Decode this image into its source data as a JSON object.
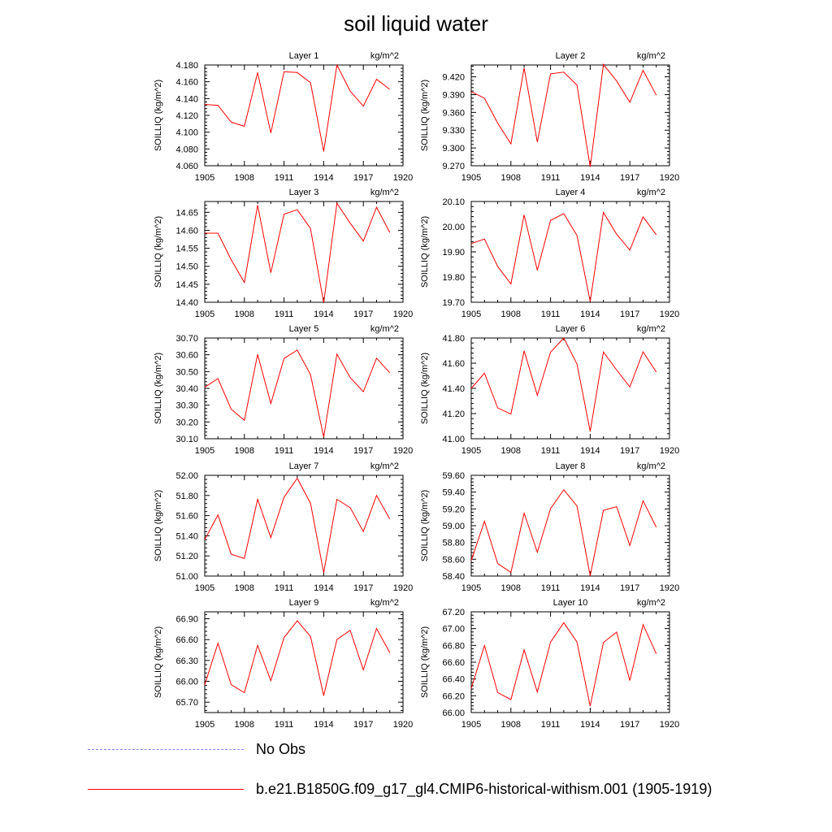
{
  "title": "soil liquid water",
  "chart_data": {
    "type": "line",
    "xlabel": "",
    "ylabel": "SOILLIQ  (kg/m^2)",
    "units": "kg/m^2",
    "xlim": [
      1905,
      1920
    ],
    "x_ticks": [
      1905,
      1908,
      1911,
      1914,
      1917,
      1920
    ],
    "x": [
      1905,
      1906,
      1907,
      1908,
      1909,
      1910,
      1911,
      1912,
      1913,
      1914,
      1915,
      1916,
      1917,
      1918,
      1919
    ],
    "panels": [
      {
        "label": "Layer 1",
        "ylim": [
          4.06,
          4.18
        ],
        "y_ticks": [
          "4.060",
          "4.080",
          "4.100",
          "4.120",
          "4.140",
          "4.160",
          "4.180"
        ],
        "series": [
          {
            "name": "b.e21.B1850G.f09_g17_gl4.CMIP6-historical-withism.001 (1905-1919)",
            "color": "#ff0000",
            "values": [
              4.133,
              4.132,
              4.112,
              4.107,
              4.171,
              4.099,
              4.172,
              4.171,
              4.159,
              4.077,
              4.18,
              4.149,
              4.131,
              4.163,
              4.151
            ]
          }
        ]
      },
      {
        "label": "Layer 2",
        "ylim": [
          9.27,
          9.44
        ],
        "y_ticks": [
          "9.270",
          "9.300",
          "9.330",
          "9.360",
          "9.390",
          "9.420"
        ],
        "series": [
          {
            "name": "b.e21.B1850G.f09_g17_gl4.CMIP6-historical-withism.001 (1905-1919)",
            "color": "#ff0000",
            "values": [
              9.395,
              9.384,
              9.342,
              9.307,
              9.435,
              9.31,
              9.425,
              9.428,
              9.406,
              9.268,
              9.441,
              9.413,
              9.377,
              9.431,
              9.389
            ]
          }
        ]
      },
      {
        "label": "Layer 3",
        "ylim": [
          14.4,
          14.68
        ],
        "y_ticks": [
          "14.40",
          "14.45",
          "14.50",
          "14.55",
          "14.60",
          "14.65"
        ],
        "series": [
          {
            "name": "b.e21.B1850G.f09_g17_gl4.CMIP6-historical-withism.001 (1905-1919)",
            "color": "#ff0000",
            "values": [
              14.592,
              14.592,
              14.518,
              14.455,
              14.67,
              14.482,
              14.645,
              14.657,
              14.605,
              14.398,
              14.675,
              14.62,
              14.57,
              14.664,
              14.594
            ]
          }
        ]
      },
      {
        "label": "Layer 4",
        "ylim": [
          19.7,
          20.1
        ],
        "y_ticks": [
          "19.70",
          "19.80",
          "19.90",
          "20.00",
          "20.10"
        ],
        "series": [
          {
            "name": "b.e21.B1850G.f09_g17_gl4.CMIP6-historical-withism.001 (1905-1919)",
            "color": "#ff0000",
            "values": [
              19.933,
              19.951,
              19.842,
              19.773,
              20.047,
              19.827,
              20.025,
              20.052,
              19.965,
              19.703,
              20.057,
              19.97,
              19.907,
              20.039,
              19.968
            ]
          }
        ]
      },
      {
        "label": "Layer 5",
        "ylim": [
          30.1,
          30.7
        ],
        "y_ticks": [
          "30.10",
          "30.20",
          "30.30",
          "30.40",
          "30.50",
          "30.60",
          "30.70"
        ],
        "series": [
          {
            "name": "b.e21.B1850G.f09_g17_gl4.CMIP6-historical-withism.001 (1905-1919)",
            "color": "#ff0000",
            "values": [
              30.407,
              30.458,
              30.276,
              30.21,
              30.602,
              30.31,
              30.578,
              30.628,
              30.482,
              30.11,
              30.604,
              30.465,
              30.38,
              30.58,
              30.493
            ]
          }
        ]
      },
      {
        "label": "Layer 6",
        "ylim": [
          41.0,
          41.8
        ],
        "y_ticks": [
          "41.00",
          "41.20",
          "41.40",
          "41.60",
          "41.80"
        ],
        "series": [
          {
            "name": "b.e21.B1850G.f09_g17_gl4.CMIP6-historical-withism.001 (1905-1919)",
            "color": "#ff0000",
            "values": [
              41.4,
              41.521,
              41.245,
              41.196,
              41.698,
              41.346,
              41.687,
              41.8,
              41.593,
              41.059,
              41.689,
              41.546,
              41.411,
              41.69,
              41.53
            ]
          }
        ]
      },
      {
        "label": "Layer 7",
        "ylim": [
          51.0,
          52.0
        ],
        "y_ticks": [
          "51.00",
          "51.20",
          "51.40",
          "51.60",
          "51.80",
          "52.00"
        ],
        "series": [
          {
            "name": "b.e21.B1850G.f09_g17_gl4.CMIP6-historical-withism.001 (1905-1919)",
            "color": "#ff0000",
            "values": [
              51.361,
              51.607,
              51.217,
              51.175,
              51.762,
              51.382,
              51.783,
              51.971,
              51.723,
              51.033,
              51.762,
              51.679,
              51.442,
              51.8,
              51.567
            ]
          }
        ]
      },
      {
        "label": "Layer 8",
        "ylim": [
          58.4,
          59.6
        ],
        "y_ticks": [
          "58.40",
          "58.60",
          "58.80",
          "59.00",
          "59.20",
          "59.40",
          "59.60"
        ],
        "series": [
          {
            "name": "b.e21.B1850G.f09_g17_gl4.CMIP6-historical-withism.001 (1905-1919)",
            "color": "#ff0000",
            "values": [
              58.586,
              59.053,
              58.55,
              58.443,
              59.15,
              58.684,
              59.202,
              59.428,
              59.235,
              58.403,
              59.183,
              59.226,
              58.764,
              59.297,
              58.982
            ]
          }
        ]
      },
      {
        "label": "Layer 9",
        "ylim": [
          65.55,
          67.0
        ],
        "y_ticks": [
          "65.70",
          "66.00",
          "66.30",
          "66.60",
          "66.90"
        ],
        "series": [
          {
            "name": "b.e21.B1850G.f09_g17_gl4.CMIP6-historical-withism.001 (1905-1919)",
            "color": "#ff0000",
            "values": [
              65.949,
              66.548,
              65.952,
              65.836,
              66.517,
              66.01,
              66.63,
              66.871,
              66.646,
              65.793,
              66.6,
              66.734,
              66.165,
              66.76,
              66.411
            ]
          }
        ]
      },
      {
        "label": "Layer 10",
        "ylim": [
          66.0,
          67.2
        ],
        "y_ticks": [
          "66.00",
          "66.20",
          "66.40",
          "66.60",
          "66.80",
          "67.00",
          "67.20"
        ],
        "series": [
          {
            "name": "b.e21.B1850G.f09_g17_gl4.CMIP6-historical-withism.001 (1905-1919)",
            "color": "#ff0000",
            "values": [
              66.286,
              66.798,
              66.239,
              66.154,
              66.748,
              66.244,
              66.839,
              67.07,
              66.841,
              66.077,
              66.835,
              66.958,
              66.381,
              67.047,
              66.701
            ]
          }
        ]
      }
    ],
    "legend": [
      {
        "label": "No Obs",
        "color": "#8080ff",
        "style": "dashed"
      },
      {
        "label": "b.e21.B1850G.f09_g17_gl4.CMIP6-historical-withism.001 (1905-1919)",
        "color": "#ff0000",
        "style": "solid"
      }
    ],
    "legend_position": "bottom"
  }
}
